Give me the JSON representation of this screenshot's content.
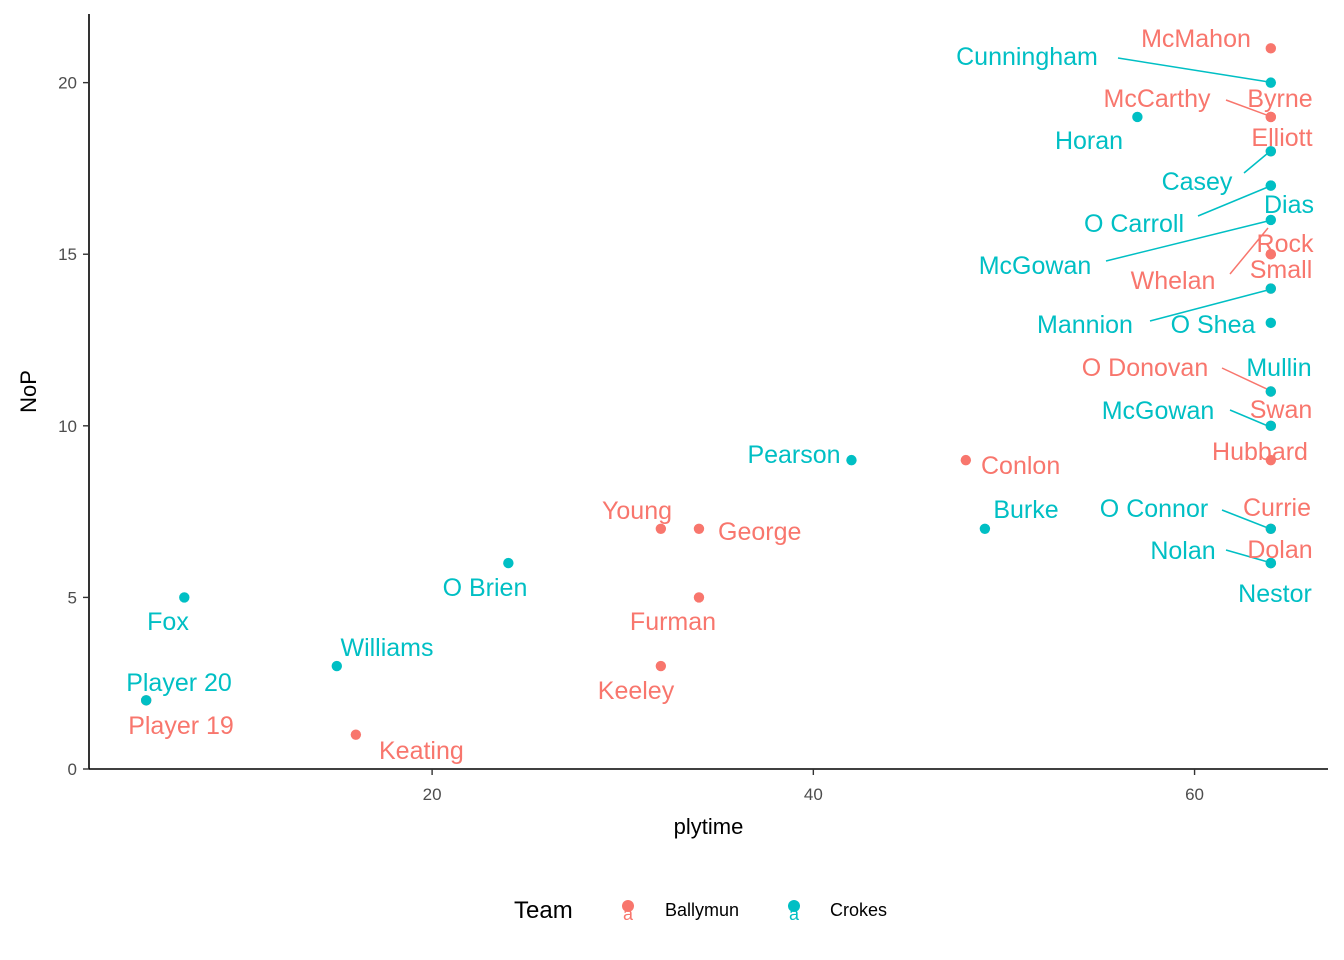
{
  "chart_data": {
    "type": "scatter",
    "xlabel": "plytime",
    "ylabel": "NoP",
    "xlim": [
      2,
      67
    ],
    "ylim": [
      0,
      22
    ],
    "x_ticks": [
      20,
      40,
      60
    ],
    "y_ticks": [
      0,
      5,
      10,
      15,
      20
    ],
    "grid": false,
    "legend": {
      "title": "Team",
      "placement": "bottom",
      "key_glyph": "a",
      "entries": [
        {
          "name": "Ballymun",
          "color": "#F8766D"
        },
        {
          "name": "Crokes",
          "color": "#00BFC4"
        }
      ]
    },
    "series": [
      {
        "name": "Ballymun",
        "color": "#F8766D",
        "points": [
          {
            "x": 64,
            "y": 21,
            "label": "McMahon"
          },
          {
            "x": 64,
            "y": 19,
            "label": "Byrne"
          },
          {
            "x": 64,
            "y": 19,
            "label": "McCarthy"
          },
          {
            "x": 64,
            "y": 18,
            "label": "Elliott"
          },
          {
            "x": 64,
            "y": 15,
            "label": "Rock"
          },
          {
            "x": 64,
            "y": 15,
            "label": "Whelan"
          },
          {
            "x": 64,
            "y": 14,
            "label": "Small"
          },
          {
            "x": 64,
            "y": 11,
            "label": "O Donovan"
          },
          {
            "x": 64,
            "y": 10,
            "label": "Swan"
          },
          {
            "x": 64,
            "y": 9,
            "label": "Hubbard"
          },
          {
            "x": 64,
            "y": 7,
            "label": "Currie"
          },
          {
            "x": 64,
            "y": 6,
            "label": "Dolan"
          },
          {
            "x": 48,
            "y": 9,
            "label": "Conlon"
          },
          {
            "x": 34,
            "y": 7,
            "label": "George"
          },
          {
            "x": 32,
            "y": 7,
            "label": "Young"
          },
          {
            "x": 34,
            "y": 5,
            "label": "Furman"
          },
          {
            "x": 32,
            "y": 3,
            "label": "Keeley"
          },
          {
            "x": 16,
            "y": 1,
            "label": "Keating"
          },
          {
            "x": 5,
            "y": 2,
            "label": "Player 19"
          }
        ]
      },
      {
        "name": "Crokes",
        "color": "#00BFC4",
        "points": [
          {
            "x": 64,
            "y": 20,
            "label": "Cunningham"
          },
          {
            "x": 57,
            "y": 19,
            "label": "Horan"
          },
          {
            "x": 64,
            "y": 18,
            "label": "Casey"
          },
          {
            "x": 64,
            "y": 17,
            "label": "O Carroll"
          },
          {
            "x": 64,
            "y": 17,
            "label": "Dias"
          },
          {
            "x": 64,
            "y": 16,
            "label": "McGowan"
          },
          {
            "x": 64,
            "y": 14,
            "label": "Mannion"
          },
          {
            "x": 64,
            "y": 13,
            "label": "O Shea"
          },
          {
            "x": 64,
            "y": 11,
            "label": "Mullin"
          },
          {
            "x": 64,
            "y": 10,
            "label": "McGowan"
          },
          {
            "x": 64,
            "y": 7,
            "label": "O Connor"
          },
          {
            "x": 64,
            "y": 6,
            "label": "Nolan"
          },
          {
            "x": 64,
            "y": 6,
            "label": "Nestor"
          },
          {
            "x": 49,
            "y": 7,
            "label": "Burke"
          },
          {
            "x": 42,
            "y": 9,
            "label": "Pearson"
          },
          {
            "x": 24,
            "y": 6,
            "label": "O Brien"
          },
          {
            "x": 7,
            "y": 5,
            "label": "Fox"
          },
          {
            "x": 15,
            "y": 3,
            "label": "Williams"
          },
          {
            "x": 5,
            "y": 2,
            "label": "Player 20"
          }
        ]
      }
    ]
  }
}
